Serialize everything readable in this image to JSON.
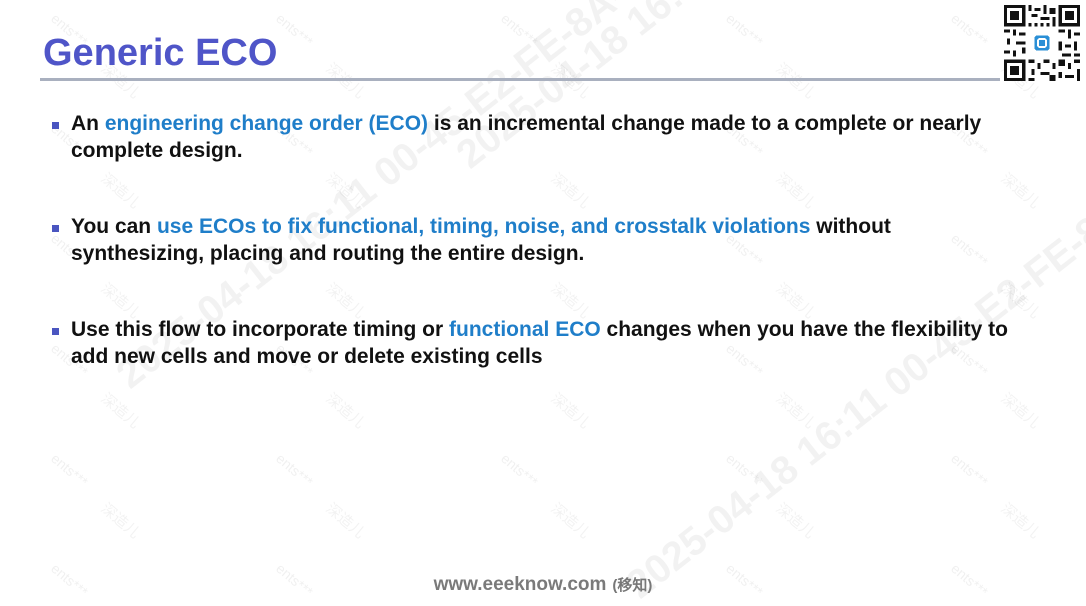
{
  "slide": {
    "title": "Generic ECO",
    "bullets": [
      {
        "parts": [
          {
            "text": "An ",
            "highlight": false
          },
          {
            "text": "engineering change order (ECO)",
            "highlight": true
          },
          {
            "text": " is an incremental change made to a complete or nearly complete design.",
            "highlight": false
          }
        ]
      },
      {
        "parts": [
          {
            "text": "You can ",
            "highlight": false
          },
          {
            "text": "use ECOs to fix functional, timing, noise, and crosstalk violations",
            "highlight": true
          },
          {
            "text": " without synthesizing, placing and routing the entire design.",
            "highlight": false
          }
        ]
      },
      {
        "parts": [
          {
            "text": "Use this flow to incorporate timing or ",
            "highlight": false
          },
          {
            "text": "functional ECO",
            "highlight": true
          },
          {
            "text": " changes when you have the flexibility to add new cells and move or delete existing cells",
            "highlight": false
          }
        ]
      }
    ]
  },
  "footer": {
    "site": "www.eeeknow.com",
    "site_cn": "(移知)"
  },
  "colors": {
    "title": "#4f55c8",
    "highlight": "#1f7ec9",
    "body_text": "#111111",
    "rule": "#a9b0bf"
  },
  "icons": {
    "qr": "qr-code-icon"
  }
}
